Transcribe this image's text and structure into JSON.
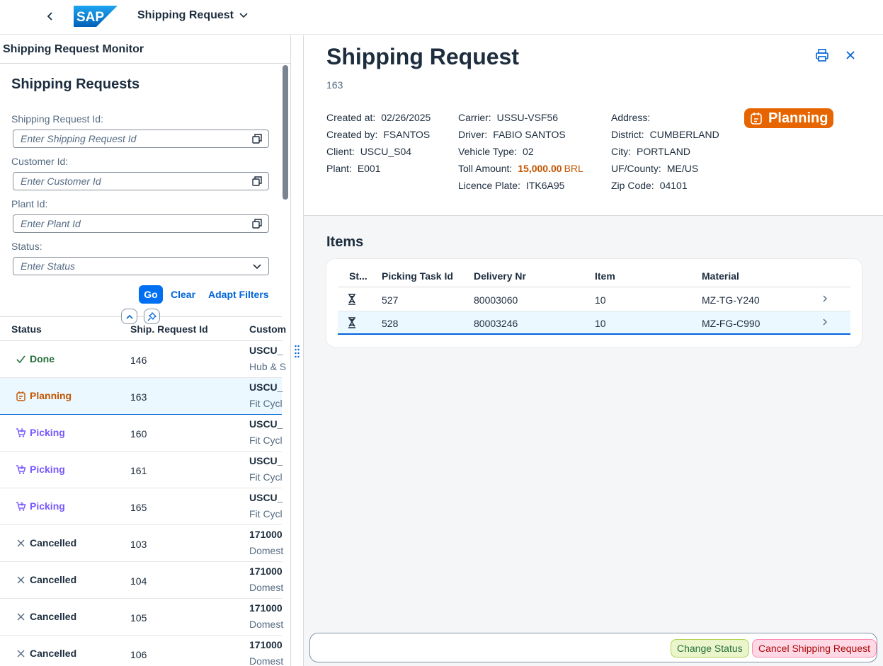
{
  "shell": {
    "back_icon": "chevron-left-icon",
    "logo_text": "SAP",
    "app_title": "Shipping Request"
  },
  "left": {
    "title": "Shipping Request Monitor",
    "filterbar": {
      "title": "Shipping Requests",
      "fields": [
        {
          "label": "Shipping Request Id:",
          "placeholder": "Enter Shipping Request Id"
        },
        {
          "label": "Customer Id:",
          "placeholder": "Enter Customer Id"
        },
        {
          "label": "Plant Id:",
          "placeholder": "Enter Plant Id"
        },
        {
          "label": "Status:",
          "placeholder": "Enter Status"
        }
      ],
      "go": "Go",
      "clear": "Clear",
      "adapt": "Adapt Filters"
    },
    "table": {
      "headers": {
        "status": "Status",
        "id": "Ship. Request Id",
        "customer": "Custom"
      },
      "rows": [
        {
          "status": "Done",
          "id": "146",
          "cust": "USCU_",
          "cust2": "Hub & S"
        },
        {
          "status": "Planning",
          "id": "163",
          "cust": "USCU_",
          "cust2": "Fit Cycl"
        },
        {
          "status": "Picking",
          "id": "160",
          "cust": "USCU_",
          "cust2": "Fit Cycl"
        },
        {
          "status": "Picking",
          "id": "161",
          "cust": "USCU_",
          "cust2": "Fit Cycl"
        },
        {
          "status": "Picking",
          "id": "165",
          "cust": "USCU_",
          "cust2": "Fit Cycl"
        },
        {
          "status": "Cancelled",
          "id": "103",
          "cust": "171000",
          "cust2": "Domest"
        },
        {
          "status": "Cancelled",
          "id": "104",
          "cust": "171000",
          "cust2": "Domest"
        },
        {
          "status": "Cancelled",
          "id": "105",
          "cust": "171000",
          "cust2": "Domest"
        },
        {
          "status": "Cancelled",
          "id": "106",
          "cust": "171000",
          "cust2": "Domest"
        }
      ]
    }
  },
  "detail": {
    "title": "Shipping Request",
    "subtitle": "163",
    "col1": [
      {
        "label": "Created at:",
        "value": "02/26/2025"
      },
      {
        "label": "Created by:",
        "value": "FSANTOS"
      },
      {
        "label": "Client:",
        "value": "USCU_S04"
      },
      {
        "label": "Plant:",
        "value": "E001"
      }
    ],
    "col2": [
      {
        "label": "Carrier:",
        "value": "USSU-VSF56"
      },
      {
        "label": "Driver:",
        "value": "FABIO SANTOS"
      },
      {
        "label": "Vehicle Type:",
        "value": "02"
      },
      {
        "label": "Toll Amount:",
        "value": "15,000.00",
        "unit": "BRL"
      },
      {
        "label": "Licence Plate:",
        "value": "ITK6A95"
      }
    ],
    "col3": [
      {
        "label": "Address:",
        "value": ""
      },
      {
        "label": "District:",
        "value": "CUMBERLAND"
      },
      {
        "label": "City:",
        "value": "PORTLAND"
      },
      {
        "label": "UF/County:",
        "value": "ME/US"
      },
      {
        "label": "Zip Code:",
        "value": "04101"
      }
    ],
    "status_badge": "Planning",
    "items": {
      "title": "Items",
      "headers": {
        "st": "St...",
        "task": "Picking Task Id",
        "delivery": "Delivery Nr",
        "item": "Item",
        "material": "Material"
      },
      "rows": [
        {
          "task": "527",
          "delivery": "80003060",
          "item": "10",
          "material": "MZ-TG-Y240"
        },
        {
          "task": "528",
          "delivery": "80003246",
          "item": "10",
          "material": "MZ-FG-C990"
        }
      ]
    },
    "footer": {
      "change_status": "Change Status",
      "cancel": "Cancel Shipping Request"
    }
  },
  "colors": {
    "done": "#256f3a",
    "planning": "#c35500",
    "picking": "#7858ff",
    "cancelled": "#1d2d3e",
    "accent": "#0070f2"
  }
}
